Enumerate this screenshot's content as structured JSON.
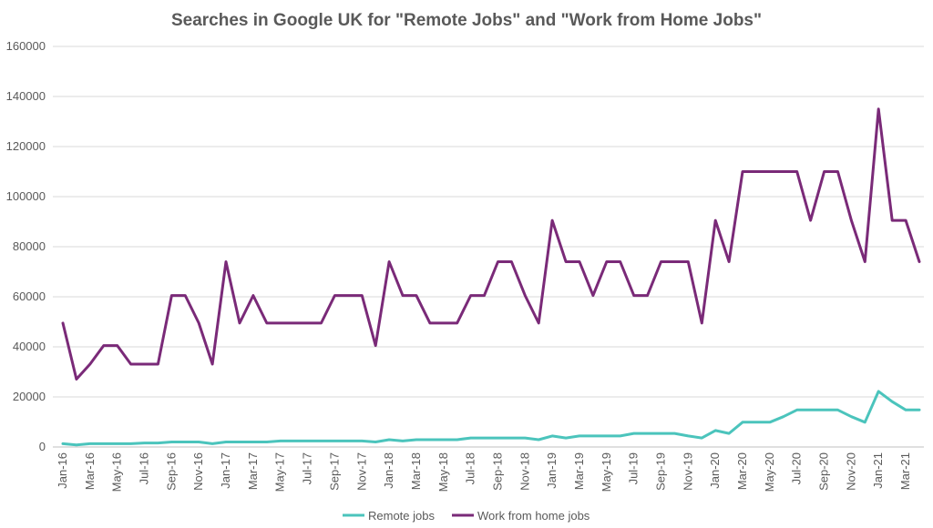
{
  "chart_data": {
    "type": "line",
    "title": "Searches in Google UK for \"Remote Jobs\" and \"Work from Home Jobs\"",
    "xlabel": "",
    "ylabel": "",
    "ylim": [
      0,
      160000
    ],
    "y_ticks": [
      "0",
      "20000",
      "40000",
      "60000",
      "80000",
      "100000",
      "120000",
      "140000",
      "160000"
    ],
    "x": [
      "Jan-16",
      "Feb-16",
      "Mar-16",
      "Apr-16",
      "May-16",
      "Jun-16",
      "Jul-16",
      "Aug-16",
      "Sep-16",
      "Oct-16",
      "Nov-16",
      "Dec-16",
      "Jan-17",
      "Feb-17",
      "Mar-17",
      "Apr-17",
      "May-17",
      "Jun-17",
      "Jul-17",
      "Aug-17",
      "Sep-17",
      "Oct-17",
      "Nov-17",
      "Dec-17",
      "Jan-18",
      "Feb-18",
      "Mar-18",
      "Apr-18",
      "May-18",
      "Jun-18",
      "Jul-18",
      "Aug-18",
      "Sep-18",
      "Oct-18",
      "Nov-18",
      "Dec-18",
      "Jan-19",
      "Feb-19",
      "Mar-19",
      "Apr-19",
      "May-19",
      "Jun-19",
      "Jul-19",
      "Aug-19",
      "Sep-19",
      "Oct-19",
      "Nov-19",
      "Dec-19",
      "Jan-20",
      "Feb-20",
      "Mar-20",
      "Apr-20",
      "May-20",
      "Jun-20",
      "Jul-20",
      "Aug-20",
      "Sep-20",
      "Oct-20",
      "Nov-20",
      "Dec-20",
      "Jan-21",
      "Feb-21",
      "Mar-21",
      "Apr-21"
    ],
    "x_tick_labels": [
      "Jan-16",
      "Mar-16",
      "May-16",
      "Jul-16",
      "Sep-16",
      "Nov-16",
      "Jan-17",
      "Mar-17",
      "May-17",
      "Jul-17",
      "Sep-17",
      "Nov-17",
      "Jan-18",
      "Mar-18",
      "May-18",
      "Jul-18",
      "Sep-18",
      "Nov-18",
      "Jan-19",
      "Mar-19",
      "May-19",
      "Jul-19",
      "Sep-19",
      "Nov-19",
      "Jan-20",
      "Mar-20",
      "May-20",
      "Jul-20",
      "Sep-20",
      "Nov-20",
      "Jan-21",
      "Mar-21"
    ],
    "grid": "horizontal",
    "legend_position": "bottom",
    "series": [
      {
        "name": "Remote jobs",
        "color": "#4bc4bc",
        "values": [
          1300,
          800,
          1300,
          1300,
          1300,
          1300,
          1600,
          1600,
          2000,
          2000,
          2000,
          1300,
          2000,
          2000,
          2000,
          2000,
          2400,
          2400,
          2400,
          2400,
          2400,
          2400,
          2400,
          2000,
          2900,
          2400,
          2900,
          2900,
          2900,
          2900,
          3600,
          3600,
          3600,
          3600,
          3600,
          2900,
          4400,
          3600,
          4400,
          4400,
          4400,
          4400,
          5400,
          5400,
          5400,
          5400,
          4400,
          3600,
          6600,
          5400,
          9900,
          9900,
          9900,
          12100,
          14800,
          14800,
          14800,
          14800,
          12100,
          9900,
          22200,
          18100,
          14800,
          14800
        ]
      },
      {
        "name": "Work from home jobs",
        "color": "#7a2a78",
        "values": [
          49500,
          27100,
          33100,
          40500,
          40500,
          33100,
          33100,
          33100,
          60500,
          60500,
          49500,
          33100,
          74000,
          49500,
          60500,
          49500,
          49500,
          49500,
          49500,
          49500,
          60500,
          60500,
          60500,
          40500,
          74000,
          60500,
          60500,
          49500,
          49500,
          49500,
          60500,
          60500,
          74000,
          74000,
          60500,
          49500,
          90500,
          74000,
          74000,
          60500,
          74000,
          74000,
          60500,
          60500,
          74000,
          74000,
          74000,
          49500,
          90500,
          74000,
          110000,
          110000,
          110000,
          110000,
          110000,
          90500,
          110000,
          110000,
          90500,
          74000,
          135000,
          90500,
          90500,
          74000
        ]
      }
    ]
  }
}
